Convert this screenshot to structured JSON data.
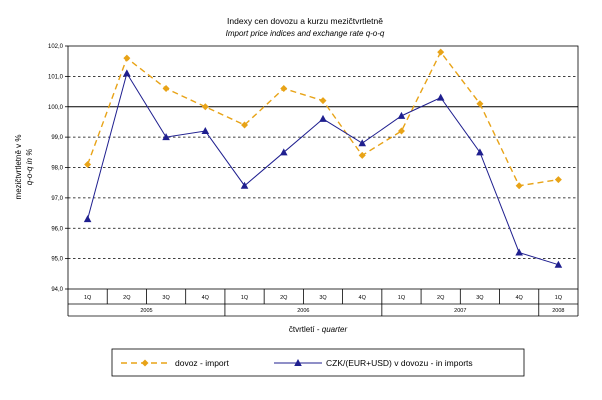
{
  "chart_data": {
    "type": "line",
    "title": "Indexy cen dovozu a kurzu mezičtvrtletně",
    "subtitle": "Import price indices and exchange rate q-o-q",
    "ylabel_cz": "mezičtvrtletně  v %",
    "ylabel_en": "q-o-q  in %",
    "xlabel_cz": "čtvrtletí - ",
    "xlabel_en": "quarter",
    "ylim": [
      94.0,
      102.0
    ],
    "yticks": [
      "94,0",
      "95,0",
      "96,0",
      "97,0",
      "98,0",
      "99,0",
      "100,0",
      "101,0",
      "102,0"
    ],
    "reference_line": 100.0,
    "grid": true,
    "legend_position": "bottom",
    "quarters": [
      "1Q",
      "2Q",
      "3Q",
      "4Q",
      "1Q",
      "2Q",
      "3Q",
      "4Q",
      "1Q",
      "2Q",
      "3Q",
      "4Q",
      "1Q"
    ],
    "year_groups": [
      {
        "label": "2005",
        "span": 4
      },
      {
        "label": "2006",
        "span": 4
      },
      {
        "label": "2007",
        "span": 4
      },
      {
        "label": "2008",
        "span": 1
      }
    ],
    "series": [
      {
        "name": "dovoz - import",
        "color": "#E8A317",
        "line_style": "dashed",
        "marker": "diamond",
        "values": [
          98.1,
          101.6,
          100.6,
          100.0,
          99.4,
          100.6,
          100.2,
          98.4,
          99.2,
          101.8,
          100.1,
          97.4,
          97.6
        ]
      },
      {
        "name": "CZK/(EUR+USD) v dovozu - in imports",
        "color": "#1F1F8F",
        "line_style": "solid",
        "marker": "triangle",
        "values": [
          96.3,
          101.1,
          99.0,
          99.2,
          97.4,
          98.5,
          99.6,
          98.8,
          99.7,
          100.3,
          98.5,
          95.2,
          94.8
        ]
      }
    ]
  }
}
